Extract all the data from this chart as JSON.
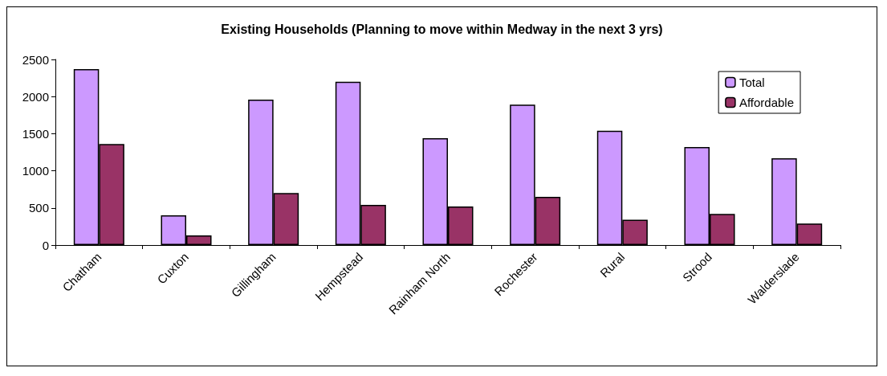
{
  "chart_data": {
    "type": "bar",
    "title": "Existing Households (Planning to move within Medway in the next 3 yrs)",
    "categories": [
      "Chatham",
      "Cuxton",
      "Gillingham",
      "Hempstead",
      "Rainham North",
      "Rochester",
      "Rural",
      "Strood",
      "Walderslade"
    ],
    "series": [
      {
        "name": "Total",
        "color": "#cc99ff",
        "values": [
          2370,
          400,
          1960,
          2200,
          1440,
          1890,
          1540,
          1320,
          1170
        ]
      },
      {
        "name": "Affordable",
        "color": "#993366",
        "values": [
          1360,
          130,
          700,
          540,
          520,
          650,
          340,
          420,
          290
        ]
      }
    ],
    "ylim": [
      0,
      2500
    ],
    "yticks": [
      0,
      500,
      1000,
      1500,
      2000,
      2500
    ],
    "grid": false,
    "legend": "top right"
  }
}
